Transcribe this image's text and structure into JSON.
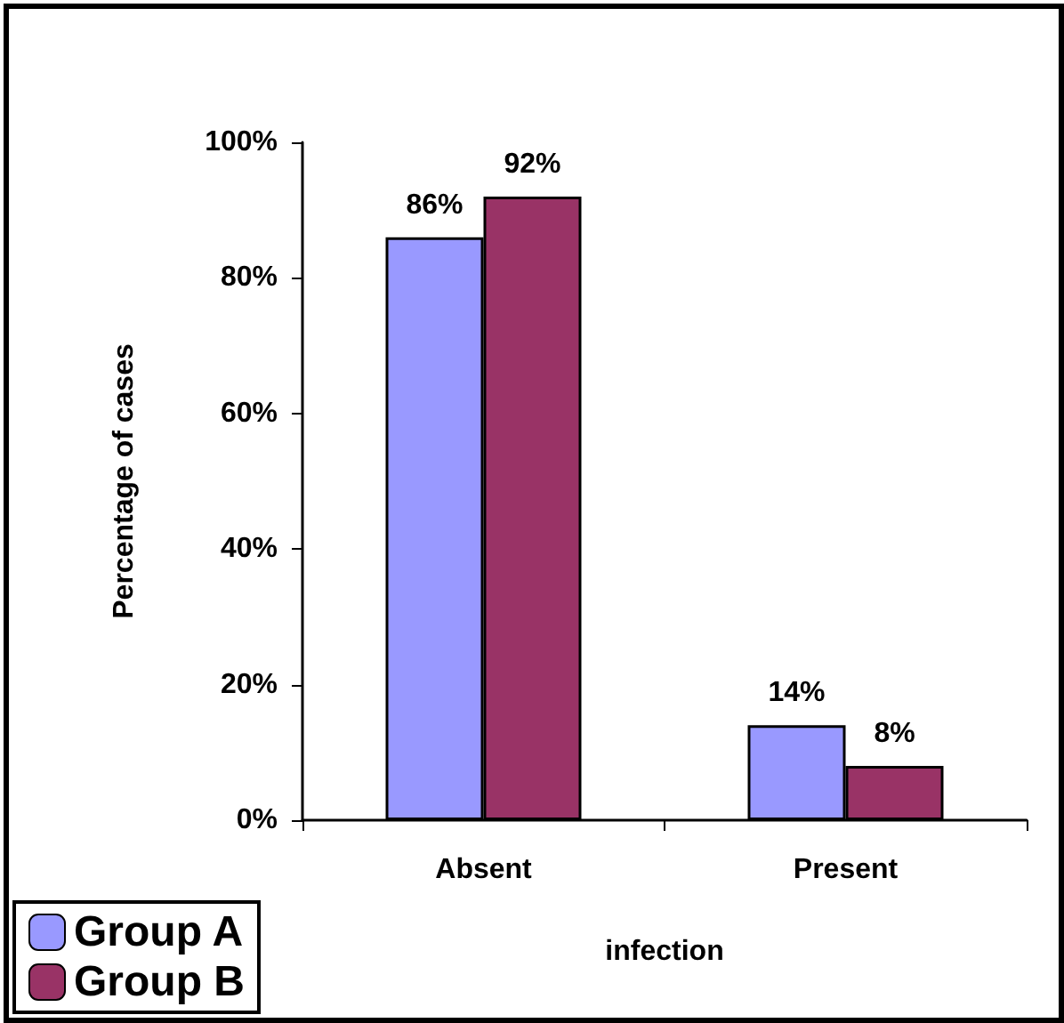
{
  "chart_data": {
    "type": "bar",
    "xlabel": "infection",
    "ylabel": "Percentage of cases",
    "categories": [
      "Absent",
      "Present"
    ],
    "series": [
      {
        "name": "Group A",
        "color": "#9999ff",
        "values": [
          86,
          14
        ],
        "value_labels": [
          "86%",
          "14%"
        ]
      },
      {
        "name": "Group B",
        "color": "#993366",
        "values": [
          92,
          8
        ],
        "value_labels": [
          "92%",
          "8%"
        ]
      }
    ],
    "ylim": [
      0,
      100
    ],
    "yticks": [
      {
        "value": 0,
        "label": "0%"
      },
      {
        "value": 20,
        "label": "20%"
      },
      {
        "value": 40,
        "label": "40%"
      },
      {
        "value": 60,
        "label": "60%"
      },
      {
        "value": 80,
        "label": "80%"
      },
      {
        "value": 100,
        "label": "100%"
      }
    ],
    "grid": false,
    "legend": "bottom left"
  }
}
